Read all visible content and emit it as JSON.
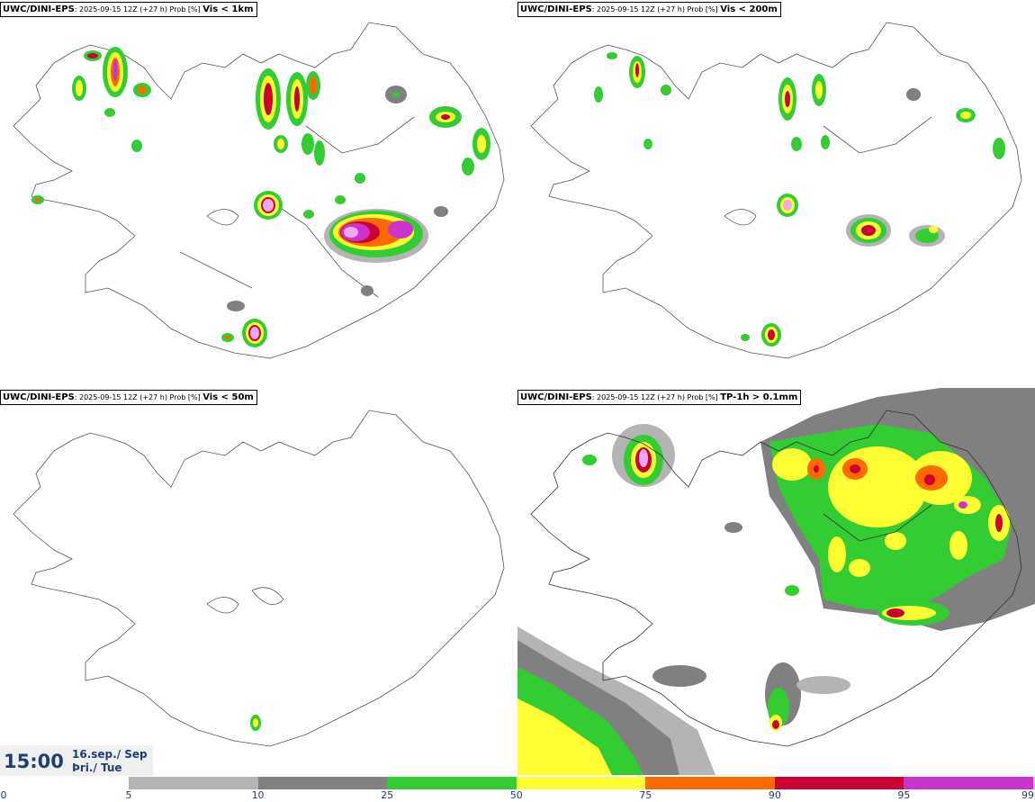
{
  "panels": [
    {
      "model": "UWC/DINI-EPS",
      "run": ": 2025-09-15 12Z (+27 h) Prob [%] ",
      "variable": "Vis < 1km"
    },
    {
      "model": "UWC/DINI-EPS",
      "run": ": 2025-09-15 12Z (+27 h) Prob [%] ",
      "variable": "Vis < 200m"
    },
    {
      "model": "UWC/DINI-EPS",
      "run": ": 2025-09-15 12Z (+27 h) Prob [%] ",
      "variable": "Vis < 50m"
    },
    {
      "model": "UWC/DINI-EPS",
      "run": ": 2025-09-15 12Z (+27 h) Prob [%] ",
      "variable": "TP-1h > 0.1mm"
    }
  ],
  "time": {
    "clock": "15:00",
    "date_line1": "16.sep./ Sep",
    "date_line2": "Þri./ Tue"
  },
  "colorbar": {
    "colors": [
      "#b4b4b4",
      "#808080",
      "#33cc33",
      "#ffff33",
      "#ff6a00",
      "#cc0033",
      "#cc33cc",
      "#f0a8f0"
    ],
    "ticks": [
      "0",
      "5",
      "10",
      "25",
      "50",
      "75",
      "90",
      "95",
      "99"
    ]
  }
}
